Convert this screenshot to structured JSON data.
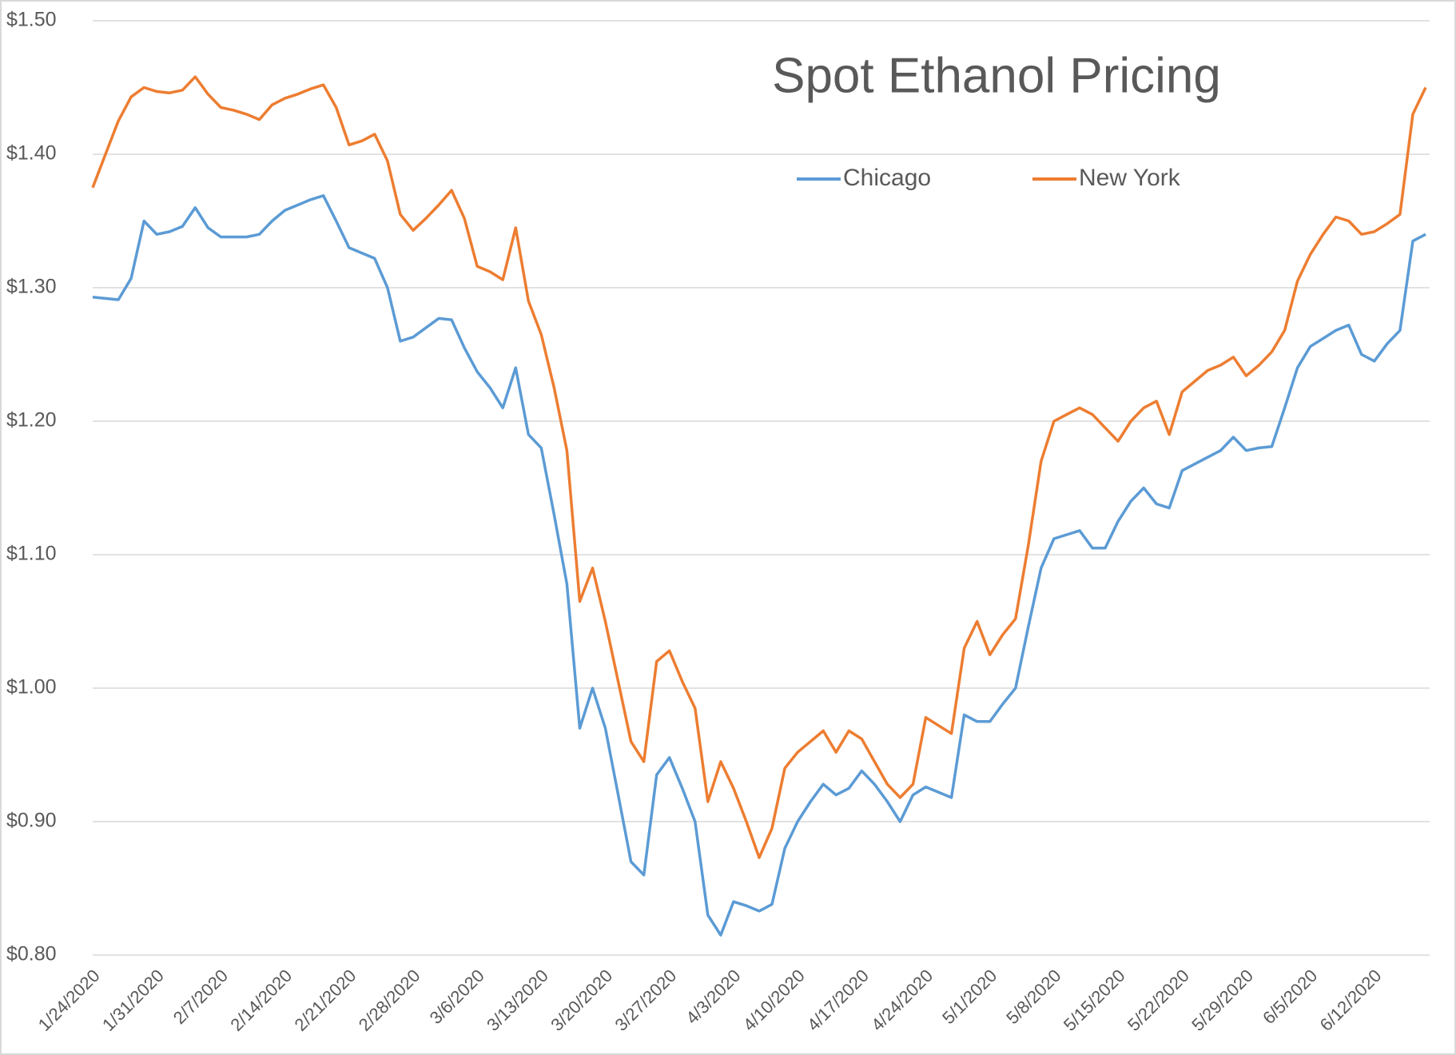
{
  "chart_data": {
    "type": "line",
    "title": "Spot Ethanol Pricing",
    "categories": [
      "1/24/2020",
      null,
      null,
      null,
      null,
      "1/31/2020",
      null,
      null,
      null,
      null,
      "2/7/2020",
      null,
      null,
      null,
      null,
      "2/14/2020",
      null,
      null,
      null,
      null,
      "2/21/2020",
      null,
      null,
      null,
      null,
      "2/28/2020",
      null,
      null,
      null,
      null,
      "3/6/2020",
      null,
      null,
      null,
      null,
      "3/13/2020",
      null,
      null,
      null,
      null,
      "3/20/2020",
      null,
      null,
      null,
      null,
      "3/27/2020",
      null,
      null,
      null,
      null,
      "4/3/2020",
      null,
      null,
      null,
      null,
      "4/10/2020",
      null,
      null,
      null,
      null,
      "4/17/2020",
      null,
      null,
      null,
      null,
      "4/24/2020",
      null,
      null,
      null,
      null,
      "5/1/2020",
      null,
      null,
      null,
      null,
      "5/8/2020",
      null,
      null,
      null,
      null,
      "5/15/2020",
      null,
      null,
      null,
      null,
      "5/22/2020",
      null,
      null,
      null,
      null,
      "5/29/2020",
      null,
      null,
      null,
      null,
      "6/5/2020",
      null,
      null,
      null,
      null,
      "6/12/2020",
      null,
      null,
      null,
      null
    ],
    "series": [
      {
        "name": "Chicago",
        "color": "#5b9bd5",
        "values": [
          1.293,
          1.292,
          1.291,
          1.307,
          1.35,
          1.34,
          1.342,
          1.346,
          1.36,
          1.345,
          1.338,
          1.338,
          1.338,
          1.34,
          1.35,
          1.358,
          1.362,
          1.366,
          1.369,
          1.35,
          1.33,
          1.326,
          1.322,
          1.3,
          1.26,
          1.263,
          1.27,
          1.277,
          1.276,
          1.255,
          1.237,
          1.225,
          1.21,
          1.24,
          1.19,
          1.18,
          1.13,
          1.078,
          0.97,
          1.0,
          0.97,
          0.92,
          0.87,
          0.86,
          0.935,
          0.948,
          0.925,
          0.9,
          0.83,
          0.815,
          0.84,
          0.837,
          0.833,
          0.838,
          0.88,
          0.9,
          0.915,
          0.928,
          0.92,
          0.925,
          0.938,
          0.928,
          0.915,
          0.9,
          0.92,
          0.926,
          0.922,
          0.918,
          0.98,
          0.975,
          0.975,
          0.988,
          1.0,
          1.046,
          1.09,
          1.112,
          1.115,
          1.118,
          1.105,
          1.105,
          1.125,
          1.14,
          1.15,
          1.138,
          1.135,
          1.163,
          1.168,
          1.173,
          1.178,
          1.188,
          1.178,
          1.18,
          1.181,
          1.21,
          1.24,
          1.256,
          1.262,
          1.268,
          1.272,
          1.25,
          1.245,
          1.258,
          1.268,
          1.335,
          1.34
        ]
      },
      {
        "name": "New York",
        "color": "#ed7d31",
        "values": [
          1.375,
          1.4,
          1.425,
          1.443,
          1.45,
          1.447,
          1.446,
          1.448,
          1.458,
          1.445,
          1.435,
          1.433,
          1.43,
          1.426,
          1.437,
          1.442,
          1.445,
          1.449,
          1.452,
          1.435,
          1.407,
          1.41,
          1.415,
          1.395,
          1.355,
          1.343,
          1.352,
          1.362,
          1.373,
          1.352,
          1.316,
          1.312,
          1.306,
          1.345,
          1.29,
          1.265,
          1.225,
          1.178,
          1.065,
          1.09,
          1.05,
          1.005,
          0.96,
          0.945,
          1.02,
          1.028,
          1.005,
          0.985,
          0.915,
          0.945,
          0.925,
          0.9,
          0.873,
          0.895,
          0.94,
          0.952,
          0.96,
          0.968,
          0.952,
          0.968,
          0.962,
          0.945,
          0.928,
          0.918,
          0.928,
          0.978,
          0.972,
          0.966,
          1.03,
          1.05,
          1.025,
          1.04,
          1.052,
          1.107,
          1.17,
          1.2,
          1.205,
          1.21,
          1.205,
          1.195,
          1.185,
          1.2,
          1.21,
          1.215,
          1.19,
          1.222,
          1.23,
          1.238,
          1.242,
          1.248,
          1.234,
          1.242,
          1.252,
          1.268,
          1.305,
          1.325,
          1.34,
          1.353,
          1.35,
          1.34,
          1.342,
          1.348,
          1.355,
          1.43,
          1.45
        ]
      }
    ],
    "ylim": [
      0.8,
      1.5
    ],
    "yticks": [
      {
        "value": 0.8,
        "label": "$0.80"
      },
      {
        "value": 0.9,
        "label": "$0.90"
      },
      {
        "value": 1.0,
        "label": "$1.00"
      },
      {
        "value": 1.1,
        "label": "$1.10"
      },
      {
        "value": 1.2,
        "label": "$1.20"
      },
      {
        "value": 1.3,
        "label": "$1.30"
      },
      {
        "value": 1.4,
        "label": "$1.40"
      },
      {
        "value": 1.5,
        "label": "$1.50"
      }
    ],
    "grid": true
  }
}
